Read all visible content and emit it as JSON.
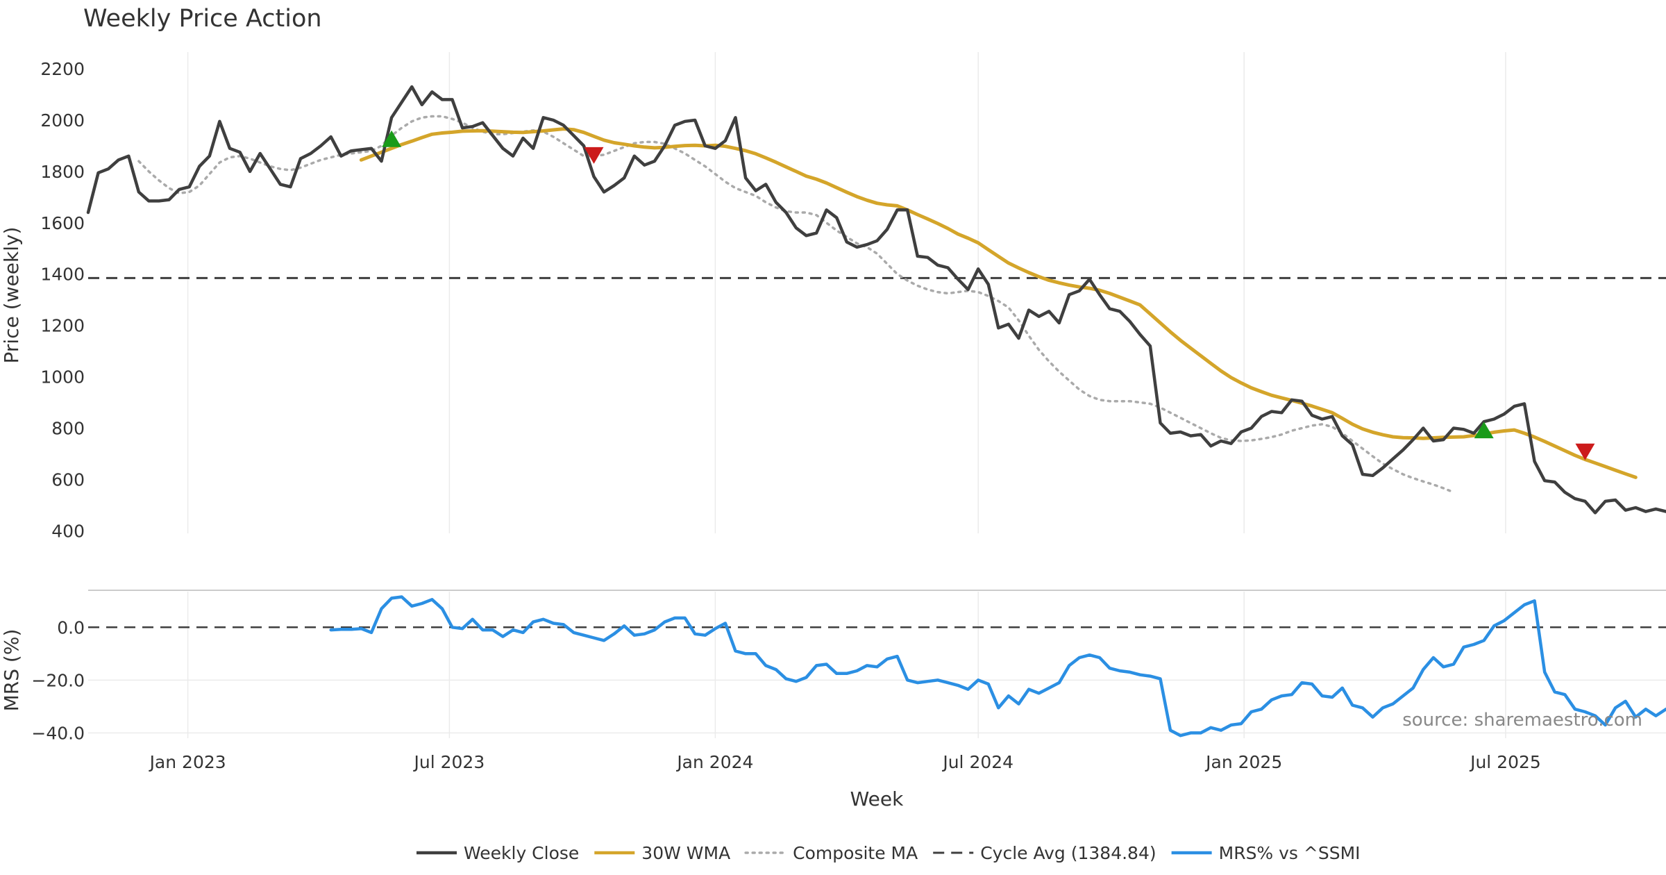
{
  "chart_data": {
    "type": "line",
    "title": "Weekly Price Action",
    "xlabel": "Week",
    "source": "source: sharemaestro.com",
    "x_tick_labels": [
      {
        "date": "2023-01-01",
        "label": "Jan 2023"
      },
      {
        "date": "2023-07-01",
        "label": "Jul 2023"
      },
      {
        "date": "2024-01-01",
        "label": "Jan 2024"
      },
      {
        "date": "2024-07-01",
        "label": "Jul 2024"
      },
      {
        "date": "2025-01-01",
        "label": "Jan 2025"
      },
      {
        "date": "2025-07-01",
        "label": "Jul 2025"
      }
    ],
    "x_range": [
      "2022-10-24",
      "2025-10-20"
    ],
    "price_panel": {
      "ylabel": "Price (weekly)",
      "ylim": [
        390,
        2230
      ],
      "yticks": [
        400,
        600,
        800,
        1000,
        1200,
        1400,
        1600,
        1800,
        2000,
        2200
      ],
      "cycle_avg": 1384.84,
      "series": [
        {
          "name": "Weekly Close",
          "color": "#3f3f3f",
          "style": "solid",
          "start": "2022-10-24",
          "values": [
            1640,
            1795,
            1810,
            1845,
            1860,
            1720,
            1685,
            1685,
            1690,
            1730,
            1740,
            1820,
            1860,
            1995,
            1890,
            1875,
            1800,
            1870,
            1810,
            1750,
            1740,
            1850,
            1870,
            1900,
            1935,
            1860,
            1880,
            1885,
            1890,
            1840,
            2010,
            2070,
            2130,
            2060,
            2110,
            2080,
            2080,
            1970,
            1975,
            1990,
            1940,
            1890,
            1860,
            1930,
            1890,
            2010,
            2000,
            1980,
            1940,
            1900,
            1780,
            1720,
            1745,
            1775,
            1860,
            1825,
            1840,
            1900,
            1980,
            1995,
            2000,
            1900,
            1890,
            1920,
            2010,
            1775,
            1725,
            1750,
            1680,
            1640,
            1580,
            1550,
            1560,
            1650,
            1620,
            1525,
            1505,
            1515,
            1530,
            1575,
            1650,
            1650,
            1470,
            1465,
            1435,
            1425,
            1380,
            1340,
            1420,
            1360,
            1190,
            1205,
            1150,
            1260,
            1235,
            1255,
            1210,
            1320,
            1335,
            1380,
            1320,
            1265,
            1255,
            1215,
            1165,
            1120,
            820,
            780,
            785,
            770,
            775,
            730,
            750,
            740,
            785,
            800,
            845,
            865,
            860,
            910,
            905,
            850,
            835,
            845,
            770,
            735,
            620,
            615,
            645,
            680,
            715,
            755,
            800,
            750,
            755,
            800,
            795,
            780,
            825,
            835,
            855,
            885,
            895,
            670,
            595,
            590,
            550,
            525,
            515,
            470,
            515,
            520,
            480,
            490,
            475,
            485,
            475
          ]
        },
        {
          "name": "30W WMA",
          "color": "#d4a52a",
          "style": "solid",
          "start": "2023-05-01",
          "values": [
            1845,
            1860,
            1875,
            1890,
            1905,
            1918,
            1932,
            1945,
            1950,
            1953,
            1957,
            1958,
            1959,
            1957,
            1955,
            1953,
            1952,
            1955,
            1958,
            1962,
            1966,
            1963,
            1952,
            1937,
            1922,
            1912,
            1906,
            1900,
            1895,
            1892,
            1894,
            1898,
            1901,
            1902,
            1900,
            1902,
            1898,
            1890,
            1881,
            1869,
            1853,
            1836,
            1818,
            1800,
            1782,
            1770,
            1755,
            1737,
            1719,
            1702,
            1688,
            1676,
            1670,
            1666,
            1650,
            1632,
            1615,
            1597,
            1578,
            1556,
            1540,
            1522,
            1495,
            1469,
            1443,
            1424,
            1406,
            1390,
            1376,
            1366,
            1357,
            1350,
            1345,
            1337,
            1325,
            1310,
            1295,
            1280,
            1245,
            1210,
            1175,
            1142,
            1112,
            1082,
            1052,
            1023,
            997,
            976,
            957,
            942,
            928,
            918,
            908,
            897,
            886,
            873,
            860,
            838,
            815,
            797,
            784,
            774,
            766,
            763,
            762,
            760,
            762,
            764,
            765,
            766,
            771,
            777,
            784,
            789,
            793,
            780,
            765,
            748,
            730,
            712,
            694,
            678,
            664,
            650,
            636,
            622,
            608
          ]
        },
        {
          "name": "Composite MA",
          "color": "#aaaaaa",
          "style": "dotted",
          "start": "2022-11-28",
          "values": [
            1840,
            1800,
            1765,
            1735,
            1715,
            1720,
            1745,
            1790,
            1835,
            1855,
            1860,
            1850,
            1835,
            1820,
            1810,
            1805,
            1815,
            1830,
            1845,
            1855,
            1865,
            1870,
            1875,
            1880,
            1900,
            1940,
            1970,
            1995,
            2010,
            2015,
            2015,
            2005,
            1990,
            1970,
            1955,
            1945,
            1945,
            1950,
            1955,
            1960,
            1955,
            1935,
            1910,
            1885,
            1860,
            1860,
            1865,
            1880,
            1895,
            1910,
            1915,
            1915,
            1908,
            1890,
            1870,
            1845,
            1820,
            1790,
            1760,
            1735,
            1720,
            1705,
            1680,
            1660,
            1645,
            1640,
            1640,
            1630,
            1600,
            1570,
            1545,
            1520,
            1505,
            1480,
            1440,
            1400,
            1375,
            1355,
            1340,
            1330,
            1325,
            1330,
            1335,
            1330,
            1315,
            1295,
            1270,
            1220,
            1160,
            1105,
            1060,
            1020,
            985,
            950,
            925,
            910,
            905,
            905,
            905,
            900,
            895,
            880,
            860,
            840,
            820,
            800,
            780,
            762,
            752,
            750,
            752,
            758,
            765,
            775,
            790,
            800,
            810,
            815,
            805,
            780,
            750,
            720,
            690,
            662,
            640,
            620,
            605,
            592,
            580,
            566,
            550
          ]
        }
      ],
      "signals": [
        {
          "type": "buy",
          "date": "2023-05-22",
          "value": 1925,
          "color": "#1a9b1a"
        },
        {
          "type": "sell",
          "date": "2023-10-09",
          "value": 1865,
          "color": "#cc1b1b"
        },
        {
          "type": "buy",
          "date": "2025-06-16",
          "value": 790,
          "color": "#1a9b1a"
        },
        {
          "type": "sell",
          "date": "2025-08-25",
          "value": 710,
          "color": "#cc1b1b"
        }
      ]
    },
    "mrs_panel": {
      "ylabel": "MRS (%)",
      "ylim": [
        -42,
        14
      ],
      "yticks": [
        0,
        -20,
        -40
      ],
      "ytick_labels": [
        "0.0",
        "−20.0",
        "−40.0"
      ],
      "zero_line": 0,
      "series": [
        {
          "name": "MRS% vs ^SSMI",
          "color": "#2b8fe3",
          "style": "solid",
          "start": "2023-04-10",
          "values": [
            -1,
            -0.8,
            -0.8,
            -0.5,
            -2,
            7,
            11,
            11.5,
            8,
            9,
            10.5,
            7,
            0,
            -0.5,
            3,
            -1,
            -1,
            -3.5,
            -1,
            -2,
            2,
            3,
            1.5,
            1,
            -2,
            -3,
            -4,
            -5,
            -2.5,
            0.5,
            -3,
            -2.5,
            -1,
            2,
            3.5,
            3.5,
            -2.5,
            -3,
            -0.5,
            1.5,
            -9,
            -10,
            -10,
            -14.5,
            -16,
            -19.5,
            -20.5,
            -19,
            -14.5,
            -14,
            -17.5,
            -17.5,
            -16.5,
            -14.5,
            -15,
            -12,
            -11,
            -20,
            -21,
            -20.5,
            -20,
            -21,
            -22,
            -23.5,
            -20,
            -21.5,
            -30.5,
            -26,
            -29,
            -23.5,
            -25,
            -23,
            -21,
            -14.5,
            -11.5,
            -10.5,
            -11.5,
            -15.5,
            -16.5,
            -17,
            -18,
            -18.5,
            -19.5,
            -39,
            -41,
            -40,
            -40,
            -38,
            -39,
            -37,
            -36.5,
            -32,
            -31,
            -27.5,
            -26,
            -25.5,
            -21,
            -21.5,
            -26,
            -26.5,
            -23,
            -29.5,
            -30.5,
            -34,
            -30.5,
            -29,
            -26,
            -23,
            -16,
            -11.5,
            -15,
            -14,
            -7.5,
            -6.5,
            -5,
            0.5,
            2.5,
            5.5,
            8.5,
            10,
            -17,
            -24.5,
            -25.5,
            -31,
            -32,
            -33.5,
            -37,
            -30.5,
            -28,
            -34,
            -31,
            -33.5,
            -31,
            -30.5
          ]
        }
      ]
    },
    "legend": [
      {
        "label": "Weekly Close",
        "color": "#3f3f3f",
        "style": "solid"
      },
      {
        "label": "30W WMA",
        "color": "#d4a52a",
        "style": "solid"
      },
      {
        "label": "Composite MA",
        "color": "#aaaaaa",
        "style": "dotted"
      },
      {
        "label": "Cycle Avg (1384.84)",
        "color": "#3f3f3f",
        "style": "dashed"
      },
      {
        "label": "MRS% vs ^SSMI",
        "color": "#2b8fe3",
        "style": "solid"
      }
    ]
  }
}
